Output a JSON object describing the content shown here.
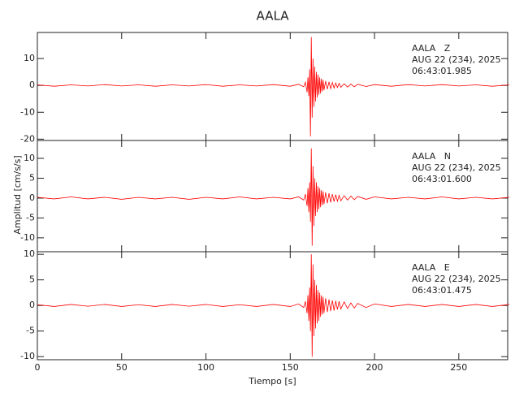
{
  "chart_data": [
    {
      "type": "line",
      "title": "AALA",
      "annotations": [
        "AALA   Z",
        "AUG 22 (234), 2025",
        "06:43:01.985"
      ],
      "xlim": [
        0,
        279
      ],
      "ylim": [
        -20.5,
        19.7
      ],
      "yticks": [
        -20,
        -10,
        0,
        10
      ],
      "series": [
        {
          "color": "#ff0000",
          "x": [
            0,
            10,
            20,
            30,
            40,
            50,
            60,
            70,
            80,
            90,
            100,
            110,
            120,
            130,
            140,
            150,
            155,
            158,
            159,
            160,
            160.5,
            161,
            161.5,
            162,
            162.5,
            163,
            163.5,
            164,
            164.5,
            165,
            165.5,
            166,
            166.5,
            167,
            167.5,
            168,
            168.5,
            169,
            169.5,
            170,
            171,
            172,
            173,
            174,
            175,
            176,
            177,
            178,
            179,
            180,
            182,
            184,
            186,
            188,
            190,
            195,
            200,
            210,
            220,
            230,
            240,
            250,
            260,
            270,
            280
          ],
          "values": [
            0.2,
            -0.3,
            0.2,
            -0.2,
            0.3,
            -0.2,
            0.2,
            -0.3,
            0.2,
            -0.2,
            0.3,
            -0.3,
            0.2,
            -0.2,
            0.3,
            -0.3,
            0.4,
            -0.5,
            1.2,
            -2.5,
            3,
            -4,
            6,
            -19,
            18,
            -12,
            10,
            -8,
            7,
            -6,
            5,
            -4.5,
            4,
            -3.5,
            3,
            -3,
            2.5,
            -2.2,
            2,
            -1.8,
            1.6,
            -1.4,
            1.3,
            -1.2,
            1.1,
            -1,
            0.9,
            -0.8,
            0.8,
            -0.7,
            0.6,
            -0.6,
            0.5,
            -0.5,
            0.4,
            -0.4,
            0.3,
            -0.3,
            0.3,
            -0.2,
            0.3,
            -0.2,
            0.2,
            -0.3,
            0.2
          ]
        }
      ]
    },
    {
      "type": "line",
      "ylabel": "Amplitud [cm/s/s]",
      "annotations": [
        "AALA   N",
        "AUG 22 (234), 2025",
        "06:43:01.600"
      ],
      "xlim": [
        0,
        279
      ],
      "ylim": [
        -13.5,
        14.5
      ],
      "yticks": [
        -10,
        -5,
        0,
        5,
        10
      ],
      "series": [
        {
          "color": "#ff0000",
          "x": [
            0,
            10,
            20,
            30,
            40,
            50,
            60,
            70,
            80,
            90,
            100,
            110,
            120,
            130,
            140,
            150,
            155,
            158,
            159,
            160,
            160.5,
            161,
            161.5,
            162,
            162.5,
            163,
            163.5,
            164,
            164.5,
            165,
            165.5,
            166,
            166.5,
            167,
            167.5,
            168,
            168.5,
            169,
            169.5,
            170,
            171,
            172,
            173,
            174,
            175,
            176,
            177,
            178,
            179,
            180,
            182,
            184,
            186,
            188,
            190,
            195,
            200,
            210,
            220,
            230,
            240,
            250,
            260,
            270,
            280
          ],
          "values": [
            0.2,
            -0.2,
            0.3,
            -0.2,
            0.2,
            -0.3,
            0.2,
            -0.2,
            0.2,
            -0.3,
            0.2,
            -0.2,
            0.3,
            -0.2,
            0.2,
            -0.2,
            0.3,
            -0.5,
            1,
            -2,
            2.5,
            -3.5,
            4,
            -6,
            12.5,
            -12,
            8,
            -7,
            5,
            -4.5,
            4,
            -3.5,
            3,
            -2.8,
            2.5,
            -2.3,
            2,
            -1.8,
            1.7,
            -1.5,
            1.4,
            -1.3,
            1.2,
            -1.1,
            1,
            -0.9,
            0.9,
            -0.8,
            0.7,
            -0.7,
            0.6,
            -0.5,
            0.5,
            -0.4,
            0.4,
            -0.3,
            0.3,
            -0.2,
            0.2,
            -0.2,
            0.3,
            -0.2,
            0.2,
            -0.2,
            0.2
          ]
        }
      ]
    },
    {
      "type": "line",
      "xlabel": "Tiempo [s]",
      "annotations": [
        "AALA   E",
        "AUG 22 (234), 2025",
        "06:43:01.475"
      ],
      "xlim": [
        0,
        279
      ],
      "xticks": [
        0,
        50,
        100,
        150,
        200,
        250
      ],
      "ylim": [
        -10.6,
        10.5
      ],
      "yticks": [
        -10,
        -5,
        0,
        5,
        10
      ],
      "series": [
        {
          "color": "#ff0000",
          "x": [
            0,
            10,
            20,
            30,
            40,
            50,
            60,
            70,
            80,
            90,
            100,
            110,
            120,
            130,
            140,
            150,
            155,
            158,
            159,
            160,
            160.5,
            161,
            161.5,
            162,
            162.5,
            163,
            163.5,
            164,
            164.5,
            165,
            165.5,
            166,
            166.5,
            167,
            167.5,
            168,
            168.5,
            169,
            169.5,
            170,
            171,
            172,
            173,
            174,
            175,
            176,
            177,
            178,
            179,
            180,
            182,
            184,
            186,
            188,
            190,
            195,
            200,
            210,
            220,
            230,
            240,
            250,
            260,
            270,
            280
          ],
          "values": [
            0.15,
            -0.2,
            0.2,
            -0.15,
            0.2,
            -0.2,
            0.15,
            -0.2,
            0.2,
            -0.15,
            0.2,
            -0.2,
            0.15,
            -0.2,
            0.2,
            -0.2,
            0.3,
            -0.4,
            0.8,
            -1.5,
            2,
            -3,
            3.5,
            -5,
            10,
            -10,
            8,
            -6,
            5,
            -4.5,
            4,
            -3.5,
            3,
            -3,
            2.5,
            -2.2,
            2,
            -1.8,
            1.7,
            -1.5,
            1.4,
            -1.3,
            1.2,
            -1.1,
            1,
            -1,
            0.9,
            -0.8,
            0.8,
            -0.7,
            0.7,
            -0.6,
            0.5,
            -0.5,
            0.4,
            -0.4,
            0.3,
            -0.2,
            0.2,
            -0.2,
            0.2,
            -0.2,
            0.2,
            -0.2,
            0.2
          ]
        }
      ]
    }
  ]
}
